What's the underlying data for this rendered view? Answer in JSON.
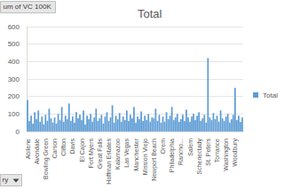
{
  "chart_data": {
    "type": "bar",
    "title": "Total",
    "annotations": [
      "um of VC 100K",
      "ry"
    ],
    "categories": [
      "Abilene",
      null,
      null,
      null,
      null,
      "Avondale",
      null,
      null,
      null,
      null,
      "Bowling Green",
      null,
      null,
      null,
      null,
      "Carson",
      null,
      null,
      null,
      null,
      "Clifton",
      null,
      null,
      null,
      null,
      "Davis",
      null,
      null,
      null,
      null,
      "El Cajon",
      null,
      null,
      null,
      null,
      "Fort Myers",
      null,
      null,
      null,
      null,
      "Great Falls",
      null,
      null,
      null,
      null,
      "Hoffman Estates",
      null,
      null,
      null,
      null,
      "Kalamazoo",
      null,
      null,
      null,
      null,
      "Las Vegas",
      null,
      null,
      null,
      null,
      "Manchester",
      null,
      null,
      null,
      null,
      "Mission Viejo",
      null,
      null,
      null,
      null,
      "Newport Beach",
      null,
      null,
      null,
      null,
      "Orem",
      null,
      null,
      null,
      null,
      "Philadelphia",
      null,
      null,
      null,
      null,
      "Rancho...",
      null,
      null,
      null,
      null,
      "Salem",
      null,
      null,
      null,
      null,
      "Schenectady",
      null,
      null,
      null,
      null,
      "St. Peters",
      null,
      null,
      null,
      null,
      "Torrance",
      null,
      null,
      null,
      null,
      "Washington",
      null,
      null,
      null,
      null,
      "Woodbury",
      null,
      null,
      null,
      null
    ],
    "series": [
      {
        "name": "Total",
        "color": "#5b9bd5",
        "values": [
          180,
          60,
          90,
          45,
          110,
          70,
          120,
          55,
          85,
          40,
          95,
          60,
          130,
          75,
          50,
          80,
          45,
          100,
          65,
          140,
          55,
          90,
          70,
          160,
          60,
          85,
          50,
          110,
          75,
          95,
          65,
          120,
          40,
          90,
          70,
          100,
          55,
          80,
          130,
          60,
          75,
          95,
          45,
          85,
          110,
          60,
          80,
          150,
          50,
          90,
          70,
          105,
          55,
          85,
          65,
          120,
          60,
          95,
          75,
          140,
          50,
          85,
          70,
          115,
          60,
          90,
          65,
          100,
          55,
          80,
          75,
          130,
          60,
          95,
          50,
          85,
          55,
          110,
          70,
          90,
          140,
          65,
          80,
          100,
          55,
          70,
          95,
          60,
          125,
          80,
          55,
          85,
          100,
          65,
          90,
          110,
          60,
          75,
          95,
          50,
          420,
          80,
          65,
          105,
          70,
          90,
          55,
          120,
          75,
          60,
          85,
          100,
          50,
          70,
          95,
          250,
          65,
          90,
          55,
          80
        ]
      }
    ],
    "ylim": [
      0,
      600
    ],
    "yticks": [
      0,
      100,
      200,
      300,
      400,
      500,
      600
    ],
    "grid": true,
    "legend": "right"
  }
}
